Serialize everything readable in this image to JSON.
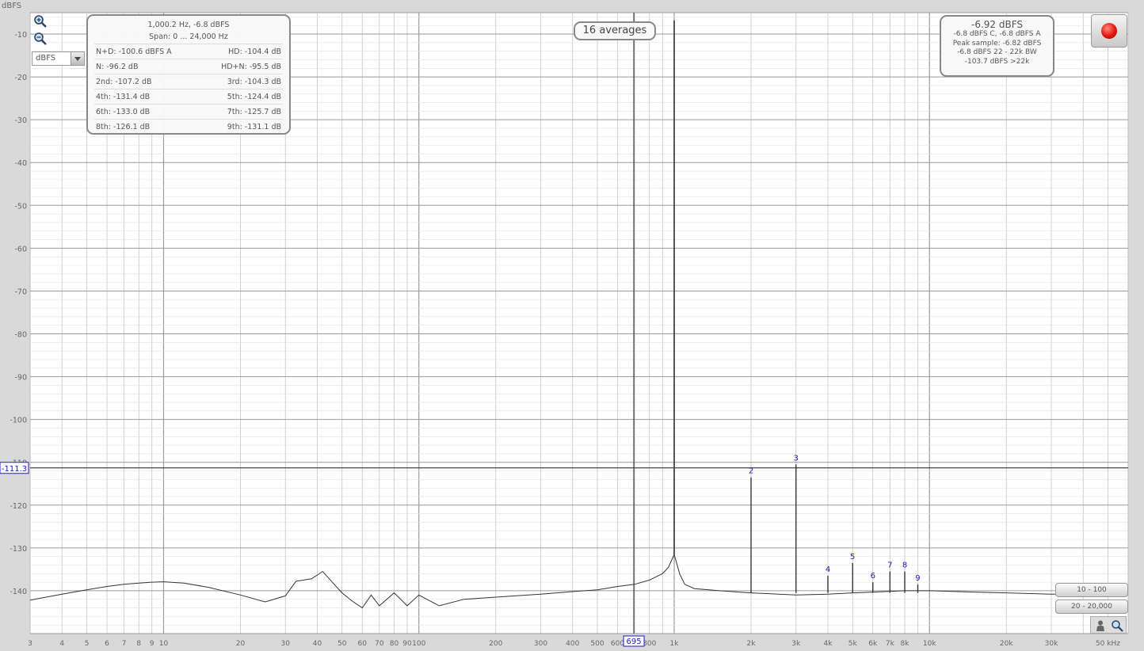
{
  "window": {
    "y_unit": "dBFS"
  },
  "chart_data": {
    "type": "line",
    "title": "",
    "xlabel": "",
    "ylabel": "dBFS",
    "x_scale": "log",
    "xlim": [
      3,
      60000
    ],
    "ylim": [
      -150,
      -5
    ],
    "x_ticks": [
      {
        "v": 3,
        "label": "3"
      },
      {
        "v": 4,
        "label": "4"
      },
      {
        "v": 5,
        "label": "5"
      },
      {
        "v": 6,
        "label": "6"
      },
      {
        "v": 7,
        "label": "7"
      },
      {
        "v": 8,
        "label": "8"
      },
      {
        "v": 9,
        "label": "9"
      },
      {
        "v": 10,
        "label": "10"
      },
      {
        "v": 20,
        "label": "20"
      },
      {
        "v": 30,
        "label": "30"
      },
      {
        "v": 40,
        "label": "40"
      },
      {
        "v": 50,
        "label": "50"
      },
      {
        "v": 60,
        "label": "60"
      },
      {
        "v": 70,
        "label": "70"
      },
      {
        "v": 80,
        "label": "80"
      },
      {
        "v": 90,
        "label": "90"
      },
      {
        "v": 100,
        "label": "100"
      },
      {
        "v": 200,
        "label": "200"
      },
      {
        "v": 300,
        "label": "300"
      },
      {
        "v": 400,
        "label": "400"
      },
      {
        "v": 500,
        "label": "500"
      },
      {
        "v": 600,
        "label": "600"
      },
      {
        "v": 700,
        "label": "700"
      },
      {
        "v": 800,
        "label": "800"
      },
      {
        "v": 1000,
        "label": "1k"
      },
      {
        "v": 2000,
        "label": "2k"
      },
      {
        "v": 3000,
        "label": "3k"
      },
      {
        "v": 4000,
        "label": "4k"
      },
      {
        "v": 5000,
        "label": "5k"
      },
      {
        "v": 6000,
        "label": "6k"
      },
      {
        "v": 7000,
        "label": "7k"
      },
      {
        "v": 8000,
        "label": "8k"
      },
      {
        "v": 10000,
        "label": "10k"
      },
      {
        "v": 20000,
        "label": "20k"
      },
      {
        "v": 30000,
        "label": "30k"
      },
      {
        "v": 50000,
        "label": "50 kHz"
      }
    ],
    "y_ticks": [
      {
        "v": -10,
        "label": "-10"
      },
      {
        "v": -20,
        "label": "-20"
      },
      {
        "v": -30,
        "label": "-30"
      },
      {
        "v": -40,
        "label": "-40"
      },
      {
        "v": -50,
        "label": "-50"
      },
      {
        "v": -60,
        "label": "-60"
      },
      {
        "v": -70,
        "label": "-70"
      },
      {
        "v": -80,
        "label": "-80"
      },
      {
        "v": -90,
        "label": "-90"
      },
      {
        "v": -100,
        "label": "-100"
      },
      {
        "v": -110,
        "label": "-110"
      },
      {
        "v": -120,
        "label": "-120"
      },
      {
        "v": -130,
        "label": "-130"
      },
      {
        "v": -140,
        "label": "-140"
      }
    ],
    "cursor": {
      "x": 695,
      "y": -111.3,
      "x_label": "695",
      "y_label": "-111.3"
    },
    "harmonics": [
      {
        "n": "2",
        "freq": 2000,
        "level": -113.5
      },
      {
        "n": "3",
        "freq": 3000,
        "level": -110.5
      },
      {
        "n": "4",
        "freq": 4000,
        "level": -136.5
      },
      {
        "n": "5",
        "freq": 5000,
        "level": -133.5
      },
      {
        "n": "6",
        "freq": 6000,
        "level": -138.0
      },
      {
        "n": "7",
        "freq": 7000,
        "level": -135.5
      },
      {
        "n": "8",
        "freq": 8000,
        "level": -135.5
      },
      {
        "n": "9",
        "freq": 9000,
        "level": -138.5
      }
    ],
    "fundamental": {
      "freq": 1000,
      "level": -6.8
    },
    "series": [
      {
        "values": [
          [
            3,
            -142.2
          ],
          [
            4,
            -140.8
          ],
          [
            5,
            -139.8
          ],
          [
            6,
            -139.0
          ],
          [
            7,
            -138.5
          ],
          [
            8,
            -138.2
          ],
          [
            9,
            -138.0
          ],
          [
            10,
            -137.9
          ],
          [
            12,
            -138.2
          ],
          [
            15,
            -139.2
          ],
          [
            20,
            -141.0
          ],
          [
            25,
            -142.6
          ],
          [
            30,
            -141.2
          ],
          [
            33,
            -137.8
          ],
          [
            38,
            -137.2
          ],
          [
            42,
            -135.5
          ],
          [
            45,
            -137.5
          ],
          [
            50,
            -140.5
          ],
          [
            55,
            -142.5
          ],
          [
            60,
            -144.0
          ],
          [
            65,
            -141.0
          ],
          [
            70,
            -143.5
          ],
          [
            80,
            -140.5
          ],
          [
            90,
            -143.5
          ],
          [
            100,
            -141.0
          ],
          [
            120,
            -143.5
          ],
          [
            150,
            -142.0
          ],
          [
            200,
            -141.5
          ],
          [
            300,
            -140.8
          ],
          [
            400,
            -140.2
          ],
          [
            500,
            -139.8
          ],
          [
            600,
            -139.0
          ],
          [
            700,
            -138.5
          ],
          [
            800,
            -137.5
          ],
          [
            900,
            -136.0
          ],
          [
            950,
            -134.5
          ],
          [
            1000,
            -131.5
          ],
          [
            1050,
            -136.0
          ],
          [
            1100,
            -138.5
          ],
          [
            1200,
            -139.5
          ],
          [
            1500,
            -140.0
          ],
          [
            2000,
            -140.5
          ],
          [
            3000,
            -141.0
          ],
          [
            4000,
            -140.8
          ],
          [
            5000,
            -140.5
          ],
          [
            6000,
            -140.3
          ],
          [
            8000,
            -140.0
          ],
          [
            10000,
            -140.0
          ],
          [
            15000,
            -140.3
          ],
          [
            20000,
            -140.5
          ],
          [
            30000,
            -140.8
          ],
          [
            40000,
            -140.8
          ]
        ]
      }
    ]
  },
  "stats": {
    "header1": "1,000.2 Hz, -6.8 dBFS",
    "header2": "Span: 0 ... 24,000 Hz",
    "rows": [
      [
        "N+D: -100.6 dBFS A",
        "HD: -104.4 dB"
      ],
      [
        "N: -96.2 dB",
        "HD+N: -95.5 dB"
      ],
      [
        "2nd: -107.2 dB",
        "3rd: -104.3 dB"
      ],
      [
        "4th: -131.4 dB",
        "5th: -124.4 dB"
      ],
      [
        "6th: -133.0 dB",
        "7th: -125.7 dB"
      ],
      [
        "8th: -126.1 dB",
        "9th: -131.1 dB"
      ]
    ]
  },
  "averages": {
    "label": "16 averages"
  },
  "level_box": {
    "main": "-6.92 dBFS",
    "line1": "-6.8 dBFS C, -6.8 dBFS A",
    "line2": "Peak sample: -6.82 dBFS",
    "line3": "-6.8 dBFS 22 - 22k BW",
    "line4": "-103.7 dBFS >22k"
  },
  "range_buttons": {
    "btn1": "10 - 100",
    "btn2": "20 - 20,000"
  },
  "colors": {
    "trace": "#333333",
    "grid": "#c4c4c4",
    "accent": "#1a1ac8",
    "record": "#e0160a"
  }
}
